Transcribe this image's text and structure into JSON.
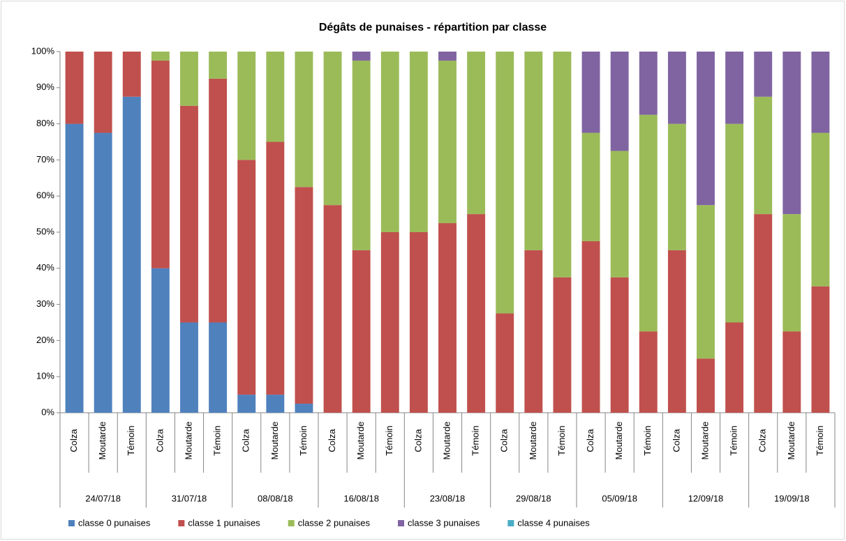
{
  "chart_data": {
    "type": "stacked_bar_100",
    "title": "Dégâts de punaises - répartition par classe",
    "groups": [
      {
        "name": "24/07/18",
        "categories": [
          "Colza",
          "Moutarde",
          "Témoin"
        ]
      },
      {
        "name": "31/07/18",
        "categories": [
          "Colza",
          "Moutarde",
          "Témoin"
        ]
      },
      {
        "name": "08/08/18",
        "categories": [
          "Colza",
          "Moutarde",
          "Témoin"
        ]
      },
      {
        "name": "16/08/18",
        "categories": [
          "Colza",
          "Moutarde",
          "Témoin"
        ]
      },
      {
        "name": "23/08/18",
        "categories": [
          "Colza",
          "Moutarde",
          "Témoin"
        ]
      },
      {
        "name": "29/08/18",
        "categories": [
          "Colza",
          "Moutarde",
          "Témoin"
        ]
      },
      {
        "name": "05/09/18",
        "categories": [
          "Colza",
          "Moutarde",
          "Témoin"
        ]
      },
      {
        "name": "12/09/18",
        "categories": [
          "Colza",
          "Moutarde",
          "Témoin"
        ]
      },
      {
        "name": "19/09/18",
        "categories": [
          "Colza",
          "Moutarde",
          "Témoin"
        ]
      }
    ],
    "series": [
      {
        "name": "classe 0 punaises",
        "color": "#4f81bd",
        "values": [
          80,
          77.5,
          87.5,
          40,
          25,
          25,
          5,
          5,
          2.5,
          0,
          0,
          0,
          0,
          0,
          0,
          0,
          0,
          0,
          0,
          0,
          0,
          0,
          0,
          0,
          0,
          0,
          0
        ]
      },
      {
        "name": "classe 1 punaises",
        "color": "#c0504d",
        "values": [
          20,
          22.5,
          12.5,
          57.5,
          60,
          67.5,
          65,
          70,
          60,
          57.5,
          45,
          50,
          50,
          52.5,
          55,
          27.5,
          45,
          37.5,
          47.5,
          37.5,
          22.5,
          45,
          15,
          25,
          55,
          22.5,
          35
        ]
      },
      {
        "name": "classe 2 punaises",
        "color": "#9bbb59",
        "values": [
          0,
          0,
          0,
          2.5,
          15,
          7.5,
          30,
          25,
          37.5,
          42.5,
          52.5,
          50,
          50,
          45,
          45,
          72.5,
          55,
          62.5,
          30,
          35,
          60,
          35,
          42.5,
          55,
          32.5,
          32.5,
          42.5
        ]
      },
      {
        "name": "classe 3 punaises",
        "color": "#8064a2",
        "values": [
          0,
          0,
          0,
          0,
          0,
          0,
          0,
          0,
          0,
          0,
          2.5,
          0,
          0,
          2.5,
          0,
          0,
          0,
          0,
          22.5,
          27.5,
          17.5,
          20,
          42.5,
          20,
          12.5,
          45,
          22.5
        ]
      },
      {
        "name": "classe 4 punaises",
        "color": "#4bacc6",
        "values": [
          0,
          0,
          0,
          0,
          0,
          0,
          0,
          0,
          0,
          0,
          0,
          0,
          0,
          0,
          0,
          0,
          0,
          0,
          0,
          0,
          0,
          0,
          0,
          0,
          0,
          0,
          0
        ]
      }
    ],
    "ylim": [
      0,
      100
    ],
    "yticks": [
      {
        "value": 0,
        "label": "0%"
      },
      {
        "value": 10,
        "label": "10%"
      },
      {
        "value": 20,
        "label": "20%"
      },
      {
        "value": 30,
        "label": "30%"
      },
      {
        "value": 40,
        "label": "40%"
      },
      {
        "value": 50,
        "label": "50%"
      },
      {
        "value": 60,
        "label": "60%"
      },
      {
        "value": 70,
        "label": "70%"
      },
      {
        "value": 80,
        "label": "80%"
      },
      {
        "value": 90,
        "label": "90%"
      },
      {
        "value": 100,
        "label": "100%"
      }
    ],
    "grid": false,
    "legend": "bottom"
  }
}
